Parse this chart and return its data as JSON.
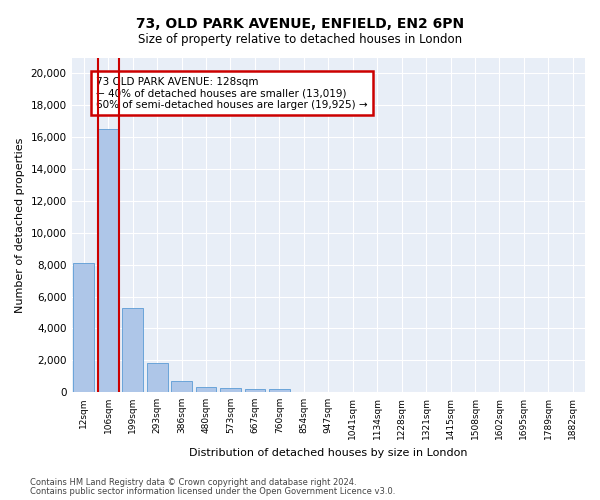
{
  "title1": "73, OLD PARK AVENUE, ENFIELD, EN2 6PN",
  "title2": "Size of property relative to detached houses in London",
  "xlabel": "Distribution of detached houses by size in London",
  "ylabel": "Number of detached properties",
  "bar_labels": [
    "12sqm",
    "106sqm",
    "199sqm",
    "293sqm",
    "386sqm",
    "480sqm",
    "573sqm",
    "667sqm",
    "760sqm",
    "854sqm",
    "947sqm",
    "1041sqm",
    "1134sqm",
    "1228sqm",
    "1321sqm",
    "1415sqm",
    "1508sqm",
    "1602sqm",
    "1695sqm",
    "1789sqm",
    "1882sqm"
  ],
  "bar_values": [
    8100,
    16500,
    5300,
    1850,
    700,
    350,
    270,
    200,
    170,
    0,
    0,
    0,
    0,
    0,
    0,
    0,
    0,
    0,
    0,
    0,
    0
  ],
  "bar_color": "#aec6e8",
  "bar_edge_color": "#5b9bd5",
  "highlight_bar_index": 1,
  "highlight_line_color": "#cc0000",
  "annotation_box_text": "73 OLD PARK AVENUE: 128sqm\n← 40% of detached houses are smaller (13,019)\n60% of semi-detached houses are larger (19,925) →",
  "annotation_box_color": "#cc0000",
  "ylim": [
    0,
    21000
  ],
  "yticks": [
    0,
    2000,
    4000,
    6000,
    8000,
    10000,
    12000,
    14000,
    16000,
    18000,
    20000
  ],
  "background_color": "#e8eef7",
  "grid_color": "#ffffff",
  "footer1": "Contains HM Land Registry data © Crown copyright and database right 2024.",
  "footer2": "Contains public sector information licensed under the Open Government Licence v3.0."
}
